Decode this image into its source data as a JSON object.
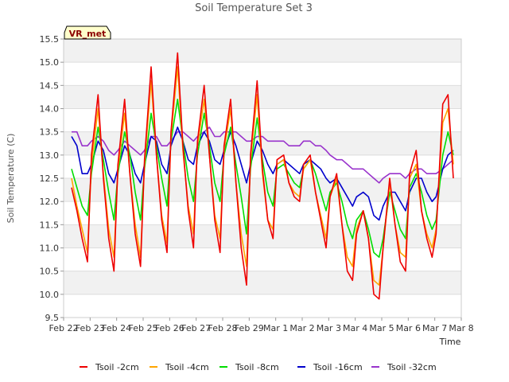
{
  "chart_data": {
    "type": "line",
    "title": "Soil Temperature Set 3",
    "xlabel": "Time",
    "ylabel": "Soil Temperature (C)",
    "site_label": "VR_met",
    "ylim": [
      9.5,
      15.5
    ],
    "yticks": [
      "9.5",
      "10.0",
      "10.5",
      "11.0",
      "11.5",
      "12.0",
      "12.5",
      "13.0",
      "13.5",
      "14.0",
      "14.5",
      "15.0",
      "15.5"
    ],
    "xticks": [
      "Feb 22",
      "Feb 23",
      "Feb 24",
      "Feb 25",
      "Feb 26",
      "Feb 27",
      "Feb 28",
      "Feb 29",
      "Mar 1",
      "Mar 2",
      "Mar 3",
      "Mar 4",
      "Mar 5",
      "Mar 6",
      "Mar 7",
      "Mar 8"
    ],
    "xlim_days": [
      0,
      15
    ],
    "grid": true,
    "legend_placement": "bottom",
    "x": [
      0.3,
      0.5,
      0.7,
      0.9,
      1.05,
      1.3,
      1.5,
      1.7,
      1.9,
      2.05,
      2.3,
      2.5,
      2.7,
      2.9,
      3.05,
      3.3,
      3.5,
      3.7,
      3.9,
      4.05,
      4.3,
      4.5,
      4.7,
      4.9,
      5.05,
      5.3,
      5.5,
      5.7,
      5.9,
      6.05,
      6.3,
      6.5,
      6.7,
      6.9,
      7.05,
      7.3,
      7.5,
      7.7,
      7.9,
      8.05,
      8.3,
      8.5,
      8.7,
      8.9,
      9.05,
      9.3,
      9.5,
      9.7,
      9.9,
      10.05,
      10.3,
      10.5,
      10.7,
      10.9,
      11.05,
      11.3,
      11.5,
      11.7,
      11.9,
      12.05,
      12.3,
      12.5,
      12.7,
      12.9,
      13.05,
      13.3,
      13.5,
      13.7,
      13.9,
      14.05,
      14.3,
      14.5,
      14.7
    ],
    "series": [
      {
        "name": "Tsoil -2cm",
        "color": "#ee0000",
        "values": [
          12.3,
          11.8,
          11.2,
          10.7,
          13.0,
          14.3,
          12.5,
          11.2,
          10.5,
          12.8,
          14.2,
          12.6,
          11.3,
          10.6,
          12.9,
          14.9,
          13.0,
          11.6,
          10.9,
          13.5,
          15.2,
          13.2,
          11.8,
          11.0,
          13.3,
          14.5,
          13.0,
          11.6,
          10.9,
          13.2,
          14.2,
          12.4,
          11.0,
          10.2,
          13.0,
          14.6,
          12.7,
          11.6,
          11.2,
          12.9,
          13.0,
          12.4,
          12.1,
          12.0,
          12.8,
          13.0,
          12.2,
          11.6,
          11.0,
          12.1,
          12.6,
          11.5,
          10.5,
          10.3,
          11.3,
          11.8,
          11.2,
          10.0,
          9.9,
          11.0,
          12.5,
          11.5,
          10.7,
          10.5,
          12.6,
          13.1,
          11.8,
          11.2,
          10.8,
          11.3,
          14.1,
          14.3,
          12.5
        ]
      },
      {
        "name": "Tsoil -4cm",
        "color": "#ffa500",
        "values": [
          12.5,
          11.9,
          11.4,
          10.9,
          12.8,
          14.0,
          12.6,
          11.4,
          10.8,
          12.7,
          13.9,
          12.6,
          11.5,
          10.8,
          12.8,
          14.6,
          13.0,
          11.7,
          11.1,
          13.4,
          14.9,
          13.1,
          11.9,
          11.3,
          13.2,
          14.2,
          13.0,
          11.7,
          11.2,
          13.1,
          14.0,
          12.4,
          11.3,
          10.6,
          12.9,
          14.3,
          12.6,
          11.6,
          11.4,
          12.8,
          12.9,
          12.4,
          12.2,
          12.1,
          12.7,
          12.9,
          12.2,
          11.7,
          11.2,
          12.1,
          12.5,
          11.5,
          10.8,
          10.6,
          11.4,
          11.8,
          11.2,
          10.3,
          10.2,
          11.0,
          12.4,
          11.5,
          10.9,
          10.8,
          12.5,
          12.8,
          11.8,
          11.3,
          11.0,
          11.4,
          13.7,
          14.0,
          12.8
        ]
      },
      {
        "name": "Tsoil -8cm",
        "color": "#00dd00",
        "values": [
          12.7,
          12.3,
          11.9,
          11.7,
          12.6,
          13.6,
          12.9,
          12.2,
          11.6,
          12.6,
          13.5,
          13.0,
          12.2,
          11.6,
          12.7,
          13.9,
          13.2,
          12.5,
          11.9,
          13.3,
          14.2,
          13.3,
          12.5,
          12.0,
          13.0,
          13.9,
          13.2,
          12.4,
          12.0,
          13.0,
          13.6,
          12.8,
          12.1,
          11.3,
          12.7,
          13.8,
          12.9,
          12.2,
          11.9,
          12.7,
          12.8,
          12.6,
          12.4,
          12.3,
          12.7,
          12.9,
          12.6,
          12.2,
          11.8,
          12.2,
          12.4,
          12.0,
          11.5,
          11.2,
          11.6,
          11.8,
          11.4,
          10.9,
          10.8,
          11.2,
          12.2,
          11.8,
          11.4,
          11.2,
          12.3,
          12.6,
          12.2,
          11.7,
          11.4,
          11.6,
          13.0,
          13.5,
          13.0
        ]
      },
      {
        "name": "Tsoil -16cm",
        "color": "#0000cc",
        "values": [
          13.4,
          13.2,
          12.6,
          12.6,
          12.8,
          13.3,
          13.1,
          12.6,
          12.4,
          12.7,
          13.2,
          13.0,
          12.6,
          12.4,
          12.8,
          13.4,
          13.3,
          12.8,
          12.6,
          13.2,
          13.6,
          13.3,
          12.9,
          12.8,
          13.2,
          13.5,
          13.3,
          12.9,
          12.8,
          13.1,
          13.5,
          13.2,
          12.8,
          12.4,
          12.8,
          13.3,
          13.1,
          12.8,
          12.6,
          12.8,
          12.9,
          12.8,
          12.7,
          12.6,
          12.8,
          12.9,
          12.8,
          12.7,
          12.5,
          12.4,
          12.5,
          12.3,
          12.1,
          11.9,
          12.1,
          12.2,
          12.1,
          11.7,
          11.6,
          11.9,
          12.2,
          12.2,
          12.0,
          11.8,
          12.2,
          12.5,
          12.5,
          12.2,
          12.0,
          12.1,
          12.7,
          13.0,
          13.1
        ]
      },
      {
        "name": "Tsoil -32cm",
        "color": "#9933cc",
        "values": [
          13.5,
          13.5,
          13.2,
          13.2,
          13.3,
          13.4,
          13.3,
          13.1,
          13.0,
          13.1,
          13.3,
          13.2,
          13.1,
          13.0,
          13.1,
          13.4,
          13.4,
          13.2,
          13.2,
          13.3,
          13.5,
          13.5,
          13.4,
          13.3,
          13.4,
          13.5,
          13.6,
          13.4,
          13.4,
          13.5,
          13.5,
          13.5,
          13.4,
          13.3,
          13.3,
          13.4,
          13.4,
          13.3,
          13.3,
          13.3,
          13.3,
          13.2,
          13.2,
          13.2,
          13.3,
          13.3,
          13.2,
          13.2,
          13.1,
          13.0,
          12.9,
          12.9,
          12.8,
          12.7,
          12.7,
          12.7,
          12.6,
          12.5,
          12.4,
          12.5,
          12.6,
          12.6,
          12.6,
          12.5,
          12.6,
          12.7,
          12.7,
          12.6,
          12.6,
          12.6,
          12.7,
          12.8,
          12.9
        ]
      }
    ]
  }
}
